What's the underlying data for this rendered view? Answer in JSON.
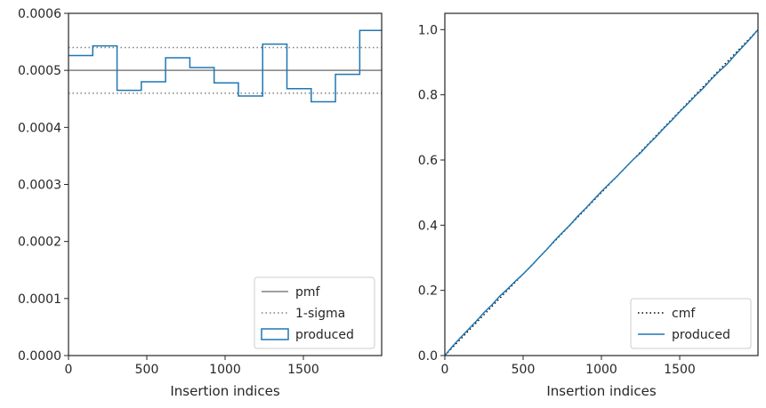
{
  "chart_data": [
    {
      "type": "step",
      "xlabel": "Insertion indices",
      "ylabel": "",
      "xlim": [
        0,
        2000
      ],
      "ylim": [
        0,
        0.0006
      ],
      "xticks": [
        0,
        500,
        1000,
        1500
      ],
      "xtick_labels": [
        "0",
        "500",
        "1000",
        "1500"
      ],
      "yticks": [
        0,
        0.0001,
        0.0002,
        0.0003,
        0.0004,
        0.0005,
        0.0006
      ],
      "ytick_labels": [
        "0.0000",
        "0.0001",
        "0.0002",
        "0.0003",
        "0.0004",
        "0.0005",
        "0.0006"
      ],
      "grid": false,
      "legend_position": "lower right",
      "series": [
        {
          "name": "pmf",
          "style": "solid",
          "color": "#808080",
          "y": 0.0005
        },
        {
          "name": "1-sigma",
          "style": "dotted",
          "color": "#808080",
          "y": [
            0.00046,
            0.00054
          ]
        },
        {
          "name": "produced",
          "style": "step",
          "color": "#1f77b4",
          "bin_edges": [
            0,
            155,
            310,
            465,
            620,
            775,
            930,
            1085,
            1240,
            1395,
            1550,
            1705,
            1860,
            2000
          ],
          "values": [
            0.000526,
            0.000543,
            0.000465,
            0.00048,
            0.000522,
            0.000505,
            0.000478,
            0.000455,
            0.000546,
            0.000468,
            0.000445,
            0.000493,
            0.00057
          ]
        }
      ]
    },
    {
      "type": "line",
      "xlabel": "Insertion indices",
      "ylabel": "",
      "xlim": [
        0,
        2000
      ],
      "ylim": [
        0,
        1.05
      ],
      "xticks": [
        0,
        500,
        1000,
        1500
      ],
      "xtick_labels": [
        "0",
        "500",
        "1000",
        "1500"
      ],
      "yticks": [
        0,
        0.2,
        0.4,
        0.6,
        0.8,
        1.0
      ],
      "ytick_labels": [
        "0.0",
        "0.2",
        "0.4",
        "0.6",
        "0.8",
        "1.0"
      ],
      "grid": false,
      "legend_position": "lower right",
      "series": [
        {
          "name": "cmf",
          "style": "dotted",
          "color": "#000000",
          "x": [
            0,
            2000
          ],
          "y": [
            0,
            1
          ]
        },
        {
          "name": "produced",
          "style": "solid",
          "color": "#1f77b4",
          "x": [
            0,
            50,
            100,
            150,
            200,
            250,
            300,
            350,
            400,
            450,
            500,
            550,
            600,
            650,
            700,
            750,
            800,
            850,
            900,
            950,
            1000,
            1050,
            1100,
            1150,
            1200,
            1250,
            1300,
            1350,
            1400,
            1450,
            1500,
            1550,
            1600,
            1650,
            1700,
            1750,
            1800,
            1850,
            1900,
            1950,
            2000
          ],
          "y": [
            0,
            0.029,
            0.055,
            0.08,
            0.105,
            0.132,
            0.155,
            0.182,
            0.204,
            0.228,
            0.25,
            0.274,
            0.3,
            0.325,
            0.352,
            0.377,
            0.401,
            0.428,
            0.452,
            0.478,
            0.503,
            0.527,
            0.55,
            0.575,
            0.6,
            0.622,
            0.648,
            0.672,
            0.698,
            0.722,
            0.748,
            0.772,
            0.797,
            0.82,
            0.847,
            0.871,
            0.893,
            0.92,
            0.946,
            0.972,
            1.0
          ]
        }
      ]
    }
  ]
}
